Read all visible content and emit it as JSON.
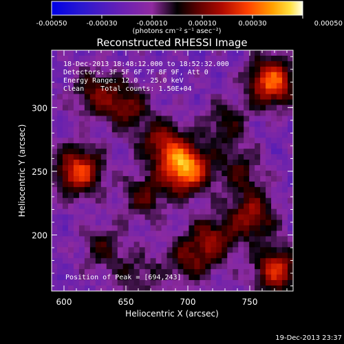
{
  "chart_data": {
    "type": "heatmap",
    "title": "Reconstructed RHESSI Image",
    "xlabel": "Heliocentric X (arcsec)",
    "ylabel": "Heliocentric Y (arcsec)",
    "xlim": [
      590,
      785
    ],
    "ylim": [
      156,
      345
    ],
    "x_ticks": [
      "600",
      "650",
      "700",
      "750"
    ],
    "x_tick_values": [
      600,
      650,
      700,
      750
    ],
    "y_ticks": [
      "200",
      "250",
      "300"
    ],
    "y_tick_values": [
      200,
      250,
      300
    ],
    "colorbar": {
      "range": [
        -0.0005,
        0.0005
      ],
      "tick_labels": [
        "-0.00050",
        "-0.00030",
        "-0.00010",
        "0.00010",
        "0.00030",
        "0.00050"
      ],
      "tick_values": [
        -0.0005,
        -0.0003,
        -0.0001,
        0.0001,
        0.0003,
        0.0005
      ],
      "units_label": "(photons cm⁻² s⁻¹ asec⁻²)"
    },
    "annotations": [
      "18-Dec-2013 18:48:12.000 to 18:52:32.000",
      "Detectors: 3F 5F 6F 7F 8F 9F, Att 0",
      "Energy Range: 12.0 - 25.0 keV",
      "Clean    Total counts: 1.50E+04",
      "Position of Peak = [694,243]"
    ],
    "sources": [
      {
        "x": 698,
        "y": 252,
        "value": 0.00048
      },
      {
        "x": 612,
        "y": 250,
        "value": 0.00036
      },
      {
        "x": 768,
        "y": 320,
        "value": 0.0004
      },
      {
        "x": 680,
        "y": 272,
        "value": 0.00022
      },
      {
        "x": 650,
        "y": 300,
        "value": 0.00018
      },
      {
        "x": 752,
        "y": 215,
        "value": 0.00024
      },
      {
        "x": 720,
        "y": 196,
        "value": 0.0002
      },
      {
        "x": 700,
        "y": 180,
        "value": 0.00014
      },
      {
        "x": 772,
        "y": 172,
        "value": 0.0003
      },
      {
        "x": 632,
        "y": 190,
        "value": 0.0001
      },
      {
        "x": 625,
        "y": 312,
        "value": 0.00016
      },
      {
        "x": 730,
        "y": 287,
        "value": 0.00012
      },
      {
        "x": 665,
        "y": 230,
        "value": 0.00014
      },
      {
        "x": 660,
        "y": 168,
        "value": 8e-05
      },
      {
        "x": 742,
        "y": 250,
        "value": 0.00012
      }
    ],
    "background_level": -0.00016
  },
  "footer_timestamp": "19-Dec-2013 23:37"
}
